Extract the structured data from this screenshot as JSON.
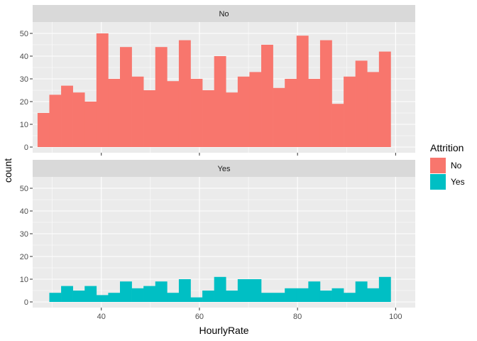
{
  "chart_data": {
    "type": "bar",
    "xlabel": "HourlyRate",
    "ylabel": "count",
    "xlim": [
      26,
      104
    ],
    "ylim": [
      -2.5,
      55
    ],
    "x_ticks": [
      40,
      60,
      80,
      100
    ],
    "y_ticks": [
      0,
      10,
      20,
      30,
      40,
      50
    ],
    "bin_width": 2.4,
    "grid": true,
    "legend": {
      "title": "Attrition",
      "position": "right",
      "entries": [
        {
          "label": "No",
          "color": "#F8766D"
        },
        {
          "label": "Yes",
          "color": "#00BFC4"
        }
      ]
    },
    "panels": [
      {
        "strip_label": "No",
        "color": "#F8766D",
        "bins": [
          {
            "x": 28.2,
            "count": 15
          },
          {
            "x": 30.6,
            "count": 23
          },
          {
            "x": 33.0,
            "count": 27
          },
          {
            "x": 35.4,
            "count": 24
          },
          {
            "x": 37.8,
            "count": 20
          },
          {
            "x": 40.2,
            "count": 50
          },
          {
            "x": 42.6,
            "count": 30
          },
          {
            "x": 45.0,
            "count": 44
          },
          {
            "x": 47.4,
            "count": 31
          },
          {
            "x": 49.8,
            "count": 25
          },
          {
            "x": 52.2,
            "count": 44
          },
          {
            "x": 54.6,
            "count": 29
          },
          {
            "x": 57.0,
            "count": 47
          },
          {
            "x": 59.4,
            "count": 30
          },
          {
            "x": 61.8,
            "count": 25
          },
          {
            "x": 64.2,
            "count": 40
          },
          {
            "x": 66.6,
            "count": 24
          },
          {
            "x": 69.0,
            "count": 31
          },
          {
            "x": 71.4,
            "count": 33
          },
          {
            "x": 73.8,
            "count": 45
          },
          {
            "x": 76.2,
            "count": 26
          },
          {
            "x": 78.6,
            "count": 30
          },
          {
            "x": 81.0,
            "count": 49
          },
          {
            "x": 83.4,
            "count": 30
          },
          {
            "x": 85.8,
            "count": 47
          },
          {
            "x": 88.2,
            "count": 19
          },
          {
            "x": 90.6,
            "count": 31
          },
          {
            "x": 93.0,
            "count": 38
          },
          {
            "x": 95.4,
            "count": 33
          },
          {
            "x": 97.8,
            "count": 42
          }
        ]
      },
      {
        "strip_label": "Yes",
        "color": "#00BFC4",
        "bins": [
          {
            "x": 30.6,
            "count": 4
          },
          {
            "x": 33.0,
            "count": 7
          },
          {
            "x": 35.4,
            "count": 5
          },
          {
            "x": 37.8,
            "count": 7
          },
          {
            "x": 40.2,
            "count": 3
          },
          {
            "x": 42.6,
            "count": 4
          },
          {
            "x": 45.0,
            "count": 9
          },
          {
            "x": 47.4,
            "count": 6
          },
          {
            "x": 49.8,
            "count": 7
          },
          {
            "x": 52.2,
            "count": 9
          },
          {
            "x": 54.6,
            "count": 4
          },
          {
            "x": 57.0,
            "count": 10
          },
          {
            "x": 59.4,
            "count": 2
          },
          {
            "x": 61.8,
            "count": 5
          },
          {
            "x": 64.2,
            "count": 11
          },
          {
            "x": 66.6,
            "count": 5
          },
          {
            "x": 69.0,
            "count": 10
          },
          {
            "x": 71.4,
            "count": 10
          },
          {
            "x": 73.8,
            "count": 4
          },
          {
            "x": 76.2,
            "count": 4
          },
          {
            "x": 78.6,
            "count": 6
          },
          {
            "x": 81.0,
            "count": 6
          },
          {
            "x": 83.4,
            "count": 9
          },
          {
            "x": 85.8,
            "count": 5
          },
          {
            "x": 88.2,
            "count": 6
          },
          {
            "x": 90.6,
            "count": 4
          },
          {
            "x": 93.0,
            "count": 9
          },
          {
            "x": 95.4,
            "count": 6
          },
          {
            "x": 97.8,
            "count": 11
          }
        ]
      }
    ]
  }
}
